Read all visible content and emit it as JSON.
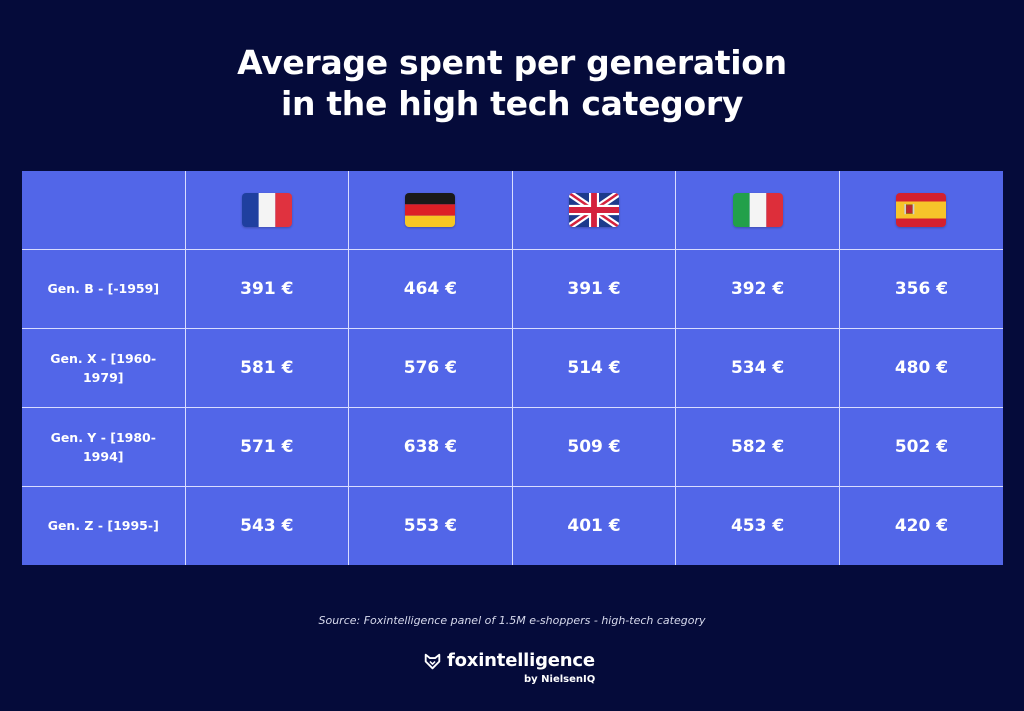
{
  "chart_data": {
    "type": "table",
    "title_lines": [
      "Average spent per generation",
      "in the high tech category"
    ],
    "columns": [
      {
        "country": "France",
        "flag_icon": "france-flag-icon"
      },
      {
        "country": "Germany",
        "flag_icon": "germany-flag-icon"
      },
      {
        "country": "United Kingdom",
        "flag_icon": "uk-flag-icon"
      },
      {
        "country": "Italy",
        "flag_icon": "italy-flag-icon"
      },
      {
        "country": "Spain",
        "flag_icon": "spain-flag-icon"
      }
    ],
    "rows": [
      {
        "label": "Gen. B - [-1959]",
        "values": [
          "391 €",
          "464 €",
          "391 €",
          "392 €",
          "356 €"
        ]
      },
      {
        "label": "Gen. X - [1960-1979]",
        "values": [
          "581 €",
          "576 €",
          "514 €",
          "534 €",
          "480 €"
        ]
      },
      {
        "label": "Gen. Y - [1980-1994]",
        "values": [
          "571 €",
          "638 €",
          "509 €",
          "582 €",
          "502 €"
        ]
      },
      {
        "label": "Gen. Z - [1995-]",
        "values": [
          "543 €",
          "553 €",
          "401 €",
          "453 €",
          "420 €"
        ]
      }
    ],
    "unit": "€"
  },
  "source": "Source: Foxintelligence panel of 1.5M e-shoppers - high-tech category",
  "brand": {
    "name": "foxintelligence",
    "sub": "by NielsenIQ",
    "icon": "fox-logo-icon"
  },
  "colors": {
    "background": "#050b3a",
    "table": "#5266e8",
    "grid_lines": "#d9ddff",
    "text": "#ffffff"
  }
}
